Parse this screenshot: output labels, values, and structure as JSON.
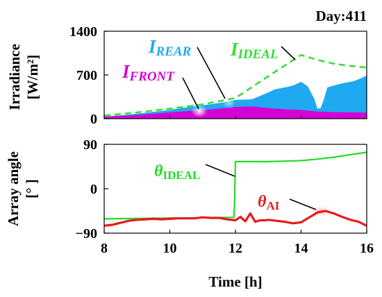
{
  "day_label": "Day:411",
  "colors": {
    "front": "#d400d4",
    "rear": "#1ea9f0",
    "ideal_irr": "#33dd33",
    "ideal_angle": "#22dd22",
    "ai_angle": "#e81a1a"
  },
  "chart_data": [
    {
      "type": "area",
      "ylabel": "Irradiance\n[W/m²]",
      "ylim": [
        0,
        1400
      ],
      "yticks": [
        "0",
        "700",
        "1400"
      ],
      "xlim": [
        8,
        16
      ],
      "grid": false,
      "annotations": [
        {
          "main": "I",
          "sub": "REAR"
        },
        {
          "main": "I",
          "sub": "IDEAL"
        },
        {
          "main": "I",
          "sub": "FRONT"
        }
      ],
      "series": [
        {
          "key": "front",
          "x": [
            8.0,
            8.5,
            9.0,
            9.5,
            10.0,
            10.5,
            11.0,
            11.5,
            12.0,
            12.5,
            13.0,
            13.5,
            14.0,
            14.5,
            15.0,
            15.5,
            16.0
          ],
          "values": [
            30,
            45,
            60,
            80,
            100,
            120,
            140,
            160,
            185,
            195,
            170,
            150,
            140,
            115,
            105,
            100,
            95
          ]
        },
        {
          "key": "total",
          "x": [
            8.0,
            8.5,
            9.0,
            9.5,
            10.0,
            10.5,
            11.0,
            11.5,
            12.0,
            12.5,
            13.0,
            13.2,
            13.4,
            13.6,
            13.8,
            14.0,
            14.2,
            14.4,
            14.5,
            14.6,
            14.7,
            14.8,
            15.0,
            15.2,
            15.4,
            15.6,
            15.8,
            16.0
          ],
          "values": [
            35,
            55,
            80,
            110,
            140,
            180,
            215,
            250,
            300,
            310,
            420,
            470,
            490,
            510,
            540,
            590,
            520,
            320,
            160,
            170,
            320,
            500,
            530,
            560,
            580,
            600,
            640,
            690
          ]
        },
        {
          "key": "ideal",
          "x": [
            8.0,
            9.0,
            10.0,
            11.0,
            12.0,
            13.0,
            14.0,
            14.5,
            15.0,
            15.5,
            16.0
          ],
          "values": [
            50,
            100,
            160,
            230,
            330,
            680,
            1020,
            940,
            880,
            845,
            820
          ]
        }
      ]
    },
    {
      "type": "line",
      "xlabel": "Time [h]",
      "ylabel": "Array angle\n[°  ]",
      "xlim": [
        8,
        16
      ],
      "xticks": [
        "8",
        "10",
        "12",
        "14",
        "16"
      ],
      "ylim": [
        -90,
        90
      ],
      "yticks": [
        "90",
        "0",
        "−90"
      ],
      "grid": false,
      "annotations": [
        {
          "main": "θ",
          "sub": "IDEAL"
        },
        {
          "main": "θ",
          "sub": "AI"
        }
      ],
      "series": [
        {
          "key": "ideal_angle",
          "x": [
            8.0,
            11.95,
            11.97,
            12.0,
            12.01,
            13.0,
            13.5,
            14.0,
            14.5,
            15.0,
            15.5,
            16.0
          ],
          "values": [
            -61,
            -58,
            -35,
            55,
            55,
            55,
            56,
            57,
            60,
            64,
            69,
            74
          ]
        },
        {
          "key": "ai_angle",
          "x": [
            8.0,
            8.25,
            8.5,
            8.75,
            9.0,
            9.25,
            9.5,
            9.75,
            10.0,
            10.25,
            10.5,
            10.75,
            11.0,
            11.25,
            11.5,
            11.75,
            12.0,
            12.15,
            12.3,
            12.45,
            12.6,
            12.75,
            12.9,
            13.0,
            13.25,
            13.5,
            13.75,
            14.0,
            14.25,
            14.5,
            14.75,
            15.0,
            15.25,
            15.5,
            15.75,
            16.0
          ],
          "values": [
            -75,
            -73,
            -69,
            -65,
            -63,
            -62,
            -61,
            -62,
            -61,
            -60,
            -60,
            -60,
            -58,
            -59,
            -59,
            -62,
            -64,
            -57,
            -66,
            -50,
            -67,
            -64,
            -64,
            -63,
            -65,
            -67,
            -70,
            -68,
            -58,
            -48,
            -45,
            -50,
            -57,
            -63,
            -67,
            -75
          ]
        }
      ]
    }
  ]
}
